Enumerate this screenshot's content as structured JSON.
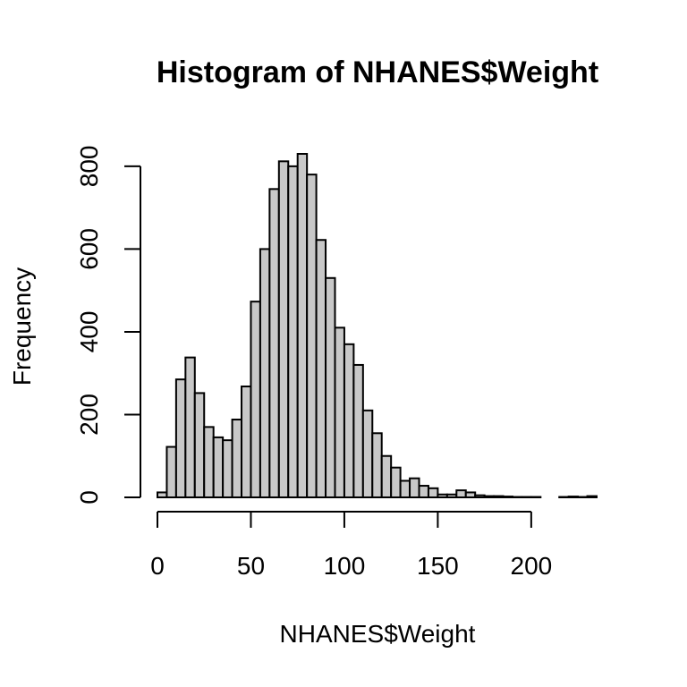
{
  "chart_data": {
    "type": "bar",
    "title": "Histogram of NHANES$Weight",
    "xlabel": "NHANES$Weight",
    "ylabel": "Frequency",
    "bin_width": 5,
    "bin_start": 0,
    "values": [
      12,
      122,
      285,
      338,
      252,
      170,
      145,
      138,
      188,
      268,
      473,
      600,
      745,
      812,
      800,
      830,
      780,
      622,
      530,
      410,
      370,
      320,
      210,
      155,
      100,
      72,
      40,
      46,
      28,
      22,
      7,
      7,
      17,
      12,
      5,
      3,
      3,
      2,
      1,
      1,
      1,
      0,
      0,
      1,
      2,
      1,
      3
    ],
    "xlim": [
      0,
      235
    ],
    "ylim": [
      0,
      830
    ],
    "x_ticks": [
      0,
      50,
      100,
      150,
      200
    ],
    "x_tick_labels": [
      "0",
      "50",
      "100",
      "150",
      "200"
    ],
    "y_ticks": [
      0,
      200,
      400,
      600,
      800
    ],
    "y_tick_labels": [
      "0",
      "200",
      "400",
      "600",
      "800"
    ],
    "colors": {
      "bar_fill": "#c8c8c8",
      "bar_stroke": "#000000"
    },
    "grid": false,
    "legend": "none"
  }
}
